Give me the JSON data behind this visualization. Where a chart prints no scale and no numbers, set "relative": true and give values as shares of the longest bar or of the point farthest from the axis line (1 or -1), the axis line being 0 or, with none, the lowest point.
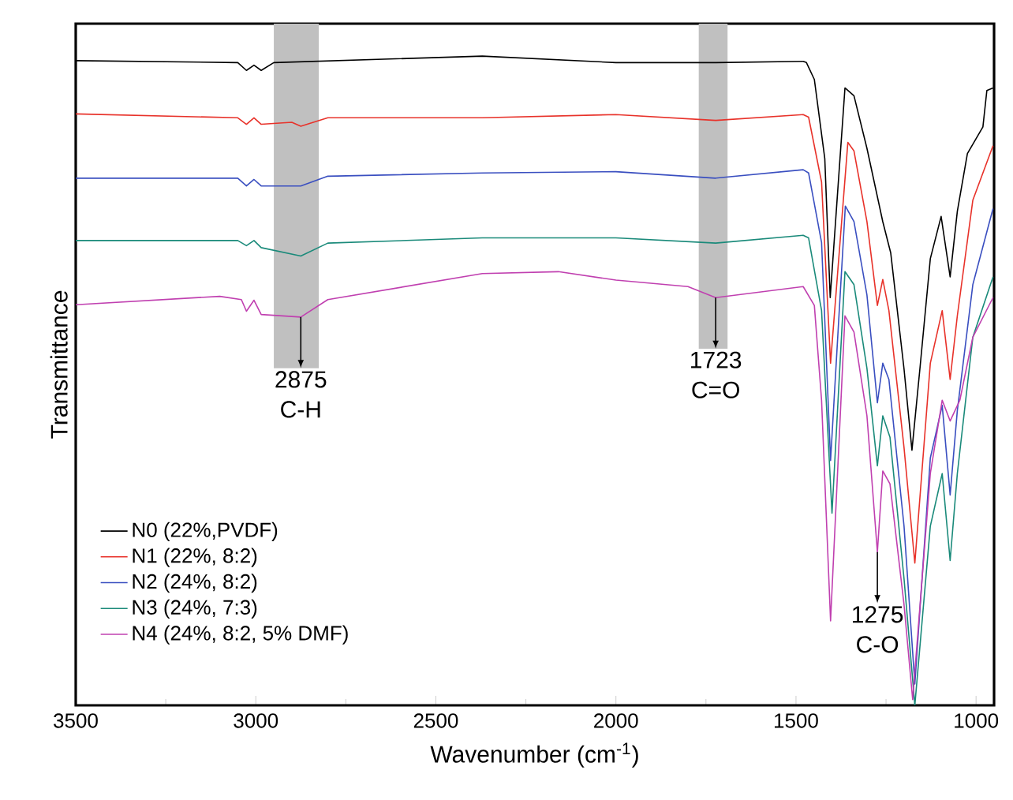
{
  "chart_data": {
    "type": "line",
    "relative": true,
    "xlabel": "Wavenumber (cm$^{-1}$)",
    "ylabel": "Transmittance",
    "xlim": [
      3500,
      950
    ],
    "xticks": [
      3500,
      3000,
      2500,
      2000,
      1500,
      1000
    ],
    "legend": "bottom left",
    "series": [
      {
        "name": "N0 (22%,PVDF)",
        "color": "#000000",
        "x": [
          3500,
          3050,
          3026,
          3005,
          2985,
          2950,
          2371,
          2000,
          1723,
          1480,
          1471,
          1449,
          1420,
          1405,
          1364,
          1339,
          1303,
          1259,
          1237,
          1200,
          1178,
          1156,
          1127,
          1097,
          1072,
          1052,
          1024,
          981,
          970,
          953
        ],
        "values": [
          0.993,
          0.99,
          0.978,
          0.986,
          0.978,
          0.99,
          1.0,
          0.99,
          0.99,
          0.992,
          0.99,
          0.964,
          0.842,
          0.628,
          0.951,
          0.939,
          0.858,
          0.745,
          0.697,
          0.518,
          0.393,
          0.518,
          0.688,
          0.753,
          0.66,
          0.761,
          0.85,
          0.891,
          0.947,
          0.951
        ]
      },
      {
        "name": "N1 (22%, 8:2)",
        "color": "#e8322a",
        "x": [
          3500,
          3050,
          3026,
          3005,
          2985,
          2900,
          2875,
          2800,
          2371,
          2000,
          1723,
          1480,
          1465,
          1429,
          1404,
          1356,
          1339,
          1303,
          1274,
          1259,
          1242,
          1200,
          1170,
          1127,
          1094,
          1072,
          1052,
          1009,
          953
        ],
        "values": [
          0.911,
          0.905,
          0.895,
          0.905,
          0.895,
          0.898,
          0.892,
          0.905,
          0.905,
          0.91,
          0.901,
          0.91,
          0.906,
          0.806,
          0.527,
          0.867,
          0.854,
          0.745,
          0.616,
          0.656,
          0.608,
          0.397,
          0.219,
          0.527,
          0.608,
          0.502,
          0.6,
          0.778,
          0.862
        ]
      },
      {
        "name": "N2 (24%, 8:2)",
        "color": "#3a4fc0",
        "x": [
          3500,
          3050,
          3026,
          3005,
          2985,
          2875,
          2800,
          2371,
          2000,
          1723,
          1480,
          1465,
          1429,
          1404,
          1363,
          1339,
          1303,
          1274,
          1259,
          1242,
          1200,
          1170,
          1127,
          1094,
          1072,
          1052,
          1009,
          953
        ],
        "values": [
          0.812,
          0.812,
          0.8,
          0.81,
          0.8,
          0.8,
          0.815,
          0.82,
          0.822,
          0.812,
          0.825,
          0.82,
          0.713,
          0.377,
          0.769,
          0.745,
          0.632,
          0.466,
          0.527,
          0.502,
          0.276,
          0.033,
          0.381,
          0.462,
          0.324,
          0.454,
          0.648,
          0.765
        ]
      },
      {
        "name": "N3 (24%, 7:3)",
        "color": "#1a8a7a",
        "x": [
          3500,
          3050,
          3026,
          3005,
          2985,
          2875,
          2800,
          2371,
          2000,
          1723,
          1480,
          1465,
          1429,
          1400,
          1364,
          1339,
          1303,
          1274,
          1259,
          1239,
          1200,
          1170,
          1127,
          1094,
          1072,
          1052,
          1009,
          953
        ],
        "values": [
          0.716,
          0.716,
          0.708,
          0.716,
          0.705,
          0.692,
          0.712,
          0.72,
          0.72,
          0.712,
          0.724,
          0.72,
          0.608,
          0.296,
          0.668,
          0.648,
          0.519,
          0.369,
          0.446,
          0.413,
          0.195,
          0.0,
          0.276,
          0.357,
          0.223,
          0.357,
          0.567,
          0.66
        ]
      },
      {
        "name": "N4 (24%, 8:2, 5% DMF)",
        "color": "#c040b0",
        "x": [
          3500,
          3100,
          3040,
          3026,
          3005,
          2985,
          2875,
          2800,
          2371,
          2160,
          2000,
          1800,
          1723,
          1480,
          1449,
          1429,
          1404,
          1364,
          1339,
          1303,
          1274,
          1259,
          1239,
          1200,
          1176,
          1127,
          1094,
          1072,
          1045,
          1009,
          953
        ],
        "values": [
          0.617,
          0.63,
          0.625,
          0.607,
          0.624,
          0.602,
          0.598,
          0.625,
          0.665,
          0.668,
          0.655,
          0.645,
          0.628,
          0.645,
          0.616,
          0.47,
          0.13,
          0.6,
          0.575,
          0.446,
          0.236,
          0.361,
          0.341,
          0.155,
          0.009,
          0.357,
          0.47,
          0.438,
          0.47,
          0.567,
          0.628
        ]
      }
    ],
    "bands": [
      {
        "axis": "x",
        "from": 2950,
        "to": 2825,
        "color": "#c0c0c0"
      },
      {
        "axis": "x",
        "from": 1770,
        "to": 1690,
        "color": "#c0c0c0"
      }
    ],
    "annotations": [
      {
        "text": "2875 C-H",
        "x": 2875,
        "y": 0.598
      },
      {
        "text": "1723 C=O",
        "x": 1723,
        "y": 0.628
      },
      {
        "text": "1275 C-O",
        "x": 1274,
        "y": 0.236
      }
    ]
  }
}
